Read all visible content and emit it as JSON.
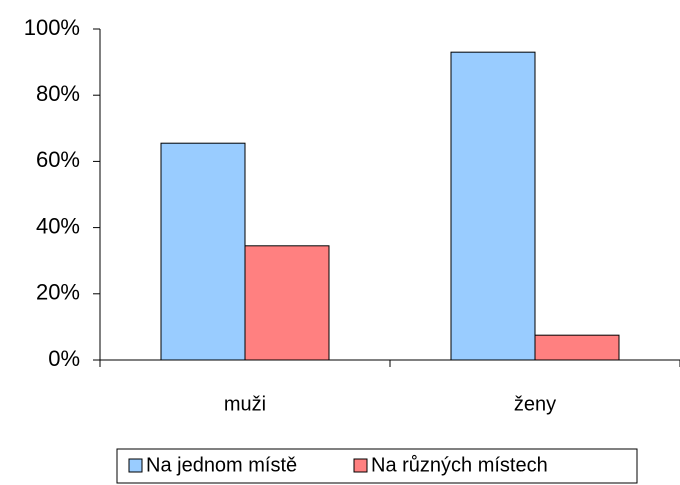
{
  "chart_data": {
    "type": "bar",
    "categories": [
      "muži",
      "ženy"
    ],
    "series": [
      {
        "name": "Na jednom místě",
        "color": "#99ccff",
        "values": [
          65.5,
          93
        ]
      },
      {
        "name": "Na různých místech",
        "color": "#ff8080",
        "values": [
          34.5,
          7.5
        ]
      }
    ],
    "ylim": [
      0,
      100
    ],
    "yticks": [
      {
        "value": 0,
        "label": "0%"
      },
      {
        "value": 20,
        "label": "20%"
      },
      {
        "value": 40,
        "label": "40%"
      },
      {
        "value": 60,
        "label": "60%"
      },
      {
        "value": 80,
        "label": "80%"
      },
      {
        "value": 100,
        "label": "100%"
      }
    ],
    "grid": false,
    "legend": "bottom"
  }
}
